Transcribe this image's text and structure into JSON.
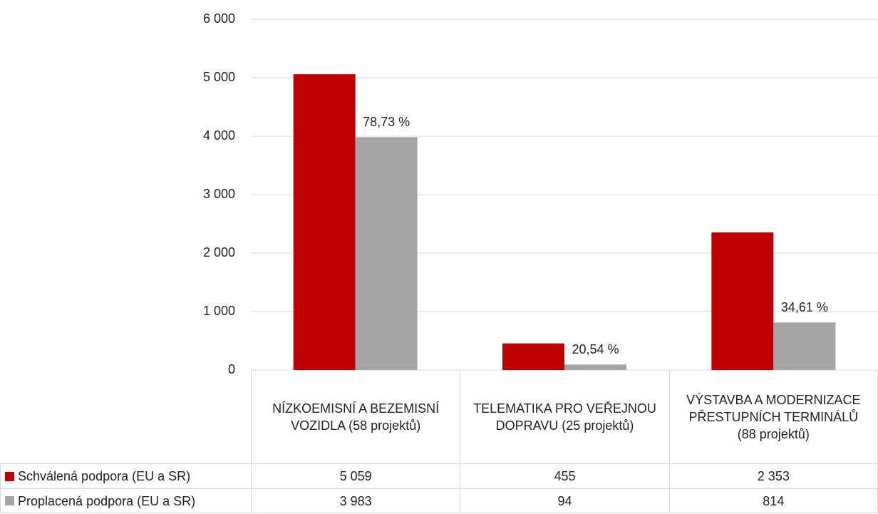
{
  "chart_data": {
    "type": "bar",
    "categories": [
      "NÍZKOEMISNÍ A BEZEMISNÍ VOZIDLA (58 projektů)",
      "TELEMATIKA PRO VEŘEJNOU DOPRAVU (25 projektů)",
      "VÝSTAVBA A MODERNIZACE PŘESTUPNÍCH TERMINÁLŮ (88 projektů)"
    ],
    "series": [
      {
        "name": "Schválená podpora (EU a SR)",
        "color": "#c00000",
        "values": [
          5059,
          455,
          2353
        ],
        "value_labels": [
          "5 059",
          "455",
          "2 353"
        ]
      },
      {
        "name": "Proplacená podpora (EU a SR)",
        "color": "#a5a5a5",
        "values": [
          3983,
          94,
          814
        ],
        "value_labels": [
          "3 983",
          "94",
          "814"
        ],
        "annotations": [
          "78,73 %",
          "20,54 %",
          "34,61 %"
        ]
      }
    ],
    "ylim": [
      0,
      6000
    ],
    "yticks": [
      0,
      {
        "value": 1000,
        "label": "1 000"
      },
      {
        "value": 2000,
        "label": "2 000"
      },
      {
        "value": 3000,
        "label": "3 000"
      },
      {
        "value": 4000,
        "label": "4 000"
      },
      {
        "value": 5000,
        "label": "5 000"
      },
      {
        "value": 6000,
        "label": "6 000"
      }
    ],
    "grid": true,
    "data_table": true
  }
}
